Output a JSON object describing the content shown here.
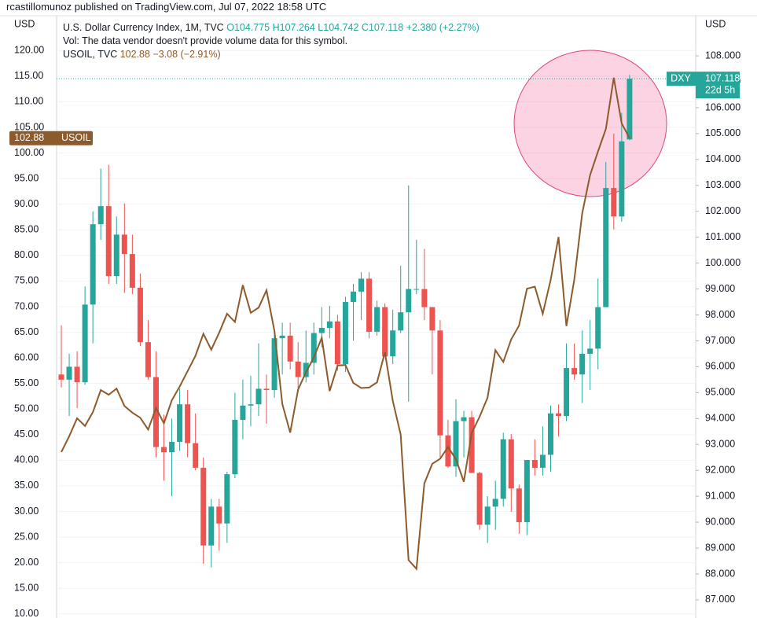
{
  "header": "rcastillomunoz published on TradingView.com, Jul 07, 2022 18:58 UTC",
  "chart_data": {
    "type": "candlestick",
    "left_axis_label": "USD",
    "right_axis_label": "USD",
    "legend": {
      "dxy_title": "U.S. Dollar Currency Index, 1M, TVC",
      "dxy_ohlc": [
        "O104.775",
        "H107.264",
        "L104.742",
        "C107.118"
      ],
      "dxy_change": "+2.380 (+2.27%)",
      "volume_note": "Vol: The data vendor doesn't provide volume data for this symbol.",
      "oil_title": "USOIL, TVC",
      "oil_last": "102.88",
      "oil_change": "−3.08 (−2.91%)"
    },
    "ylim": [
      9.2,
      126.8
    ],
    "yticks": [
      {
        "value": 10,
        "label": "10.00"
      },
      {
        "value": 15,
        "label": "15.00"
      },
      {
        "value": 20,
        "label": "20.00"
      },
      {
        "value": 25,
        "label": "25.00"
      },
      {
        "value": 30,
        "label": "30.00"
      },
      {
        "value": 35,
        "label": "35.00"
      },
      {
        "value": 40,
        "label": "40.00"
      },
      {
        "value": 45,
        "label": "45.00"
      },
      {
        "value": 50,
        "label": "50.00"
      },
      {
        "value": 55,
        "label": "55.00"
      },
      {
        "value": 60,
        "label": "60.00"
      },
      {
        "value": 65,
        "label": "65.00"
      },
      {
        "value": 70,
        "label": "70.00"
      },
      {
        "value": 75,
        "label": "75.00"
      },
      {
        "value": 80,
        "label": "80.00"
      },
      {
        "value": 85,
        "label": "85.00"
      },
      {
        "value": 90,
        "label": "90.00"
      },
      {
        "value": 95,
        "label": "95.00"
      },
      {
        "value": 100,
        "label": "100.00"
      },
      {
        "value": 105,
        "label": "105.00"
      },
      {
        "value": 110,
        "label": "110.00"
      },
      {
        "value": 115,
        "label": "115.00"
      },
      {
        "value": 120,
        "label": "120.00"
      }
    ],
    "y2lim": [
      86.3,
      109.55
    ],
    "y2ticks": [
      {
        "value": 87,
        "label": "87.000"
      },
      {
        "value": 88,
        "label": "88.000"
      },
      {
        "value": 89,
        "label": "89.000"
      },
      {
        "value": 90,
        "label": "90.000"
      },
      {
        "value": 91,
        "label": "91.000"
      },
      {
        "value": 92,
        "label": "92.000"
      },
      {
        "value": 93,
        "label": "93.000"
      },
      {
        "value": 94,
        "label": "94.000"
      },
      {
        "value": 95,
        "label": "95.000"
      },
      {
        "value": 96,
        "label": "96.000"
      },
      {
        "value": 97,
        "label": "97.000"
      },
      {
        "value": 98,
        "label": "98.000"
      },
      {
        "value": 99,
        "label": "99.000"
      },
      {
        "value": 100,
        "label": "100.000"
      },
      {
        "value": 101,
        "label": "101.000"
      },
      {
        "value": 102,
        "label": "102.000"
      },
      {
        "value": 103,
        "label": "103.000"
      },
      {
        "value": 104,
        "label": "104.000"
      },
      {
        "value": 105,
        "label": "105.000"
      },
      {
        "value": 106,
        "label": "106.000"
      },
      {
        "value": 107,
        "label": "107.000"
      },
      {
        "value": 108,
        "label": "108.000"
      }
    ],
    "grid": true,
    "series": [
      {
        "name": "DXY",
        "axis": "y2",
        "up_color": "#26a69a",
        "down_color": "#ef5350",
        "open": [
          95.7,
          95.5,
          96.0,
          95.4,
          98.4,
          101.5,
          102.2,
          99.5,
          101.1,
          100.35,
          99.05,
          96.95,
          95.6,
          92.9,
          92.7,
          93.1,
          94.55,
          93.05,
          92.1,
          89.1,
          90.6,
          89.95,
          91.85,
          93.95,
          94.5,
          94.55,
          95.15,
          95.1,
          97.1,
          97.2,
          96.2,
          95.6,
          96.15,
          97.3,
          97.5,
          97.75,
          96.1,
          98.5,
          98.9,
          99.4,
          97.35,
          98.3,
          96.4,
          97.4,
          98.1,
          99.0,
          99.0,
          98.3,
          97.4,
          93.35,
          92.15,
          93.9,
          94.05,
          91.9,
          89.9,
          90.6,
          90.9,
          93.2,
          91.3,
          90.0,
          92.4,
          92.1,
          92.6,
          94.2,
          94.1,
          95.95,
          95.7,
          96.5,
          96.7,
          98.3,
          102.9,
          101.8,
          104.775
        ],
        "high": [
          97.6,
          96.5,
          96.6,
          99.1,
          102.0,
          103.65,
          103.8,
          101.8,
          102.3,
          101.1,
          99.6,
          97.8,
          96.6,
          94.15,
          94.0,
          95.15,
          95.1,
          94.2,
          92.5,
          90.9,
          90.9,
          91.95,
          95.0,
          95.5,
          95.65,
          96.9,
          95.7,
          97.2,
          97.7,
          97.7,
          96.95,
          97.4,
          97.7,
          98.3,
          98.35,
          98.0,
          98.7,
          99.2,
          99.65,
          99.65,
          98.55,
          98.45,
          98.2,
          99.9,
          103.0,
          100.9,
          100.55,
          98.3,
          97.8,
          93.95,
          94.75,
          94.3,
          94.3,
          91.95,
          91.0,
          91.6,
          93.45,
          93.4,
          91.45,
          92.4,
          93.2,
          93.7,
          94.5,
          94.55,
          96.9,
          96.9,
          97.4,
          97.8,
          99.4,
          103.9,
          105.0,
          105.8,
          107.264
        ],
        "low": [
          95.2,
          94.1,
          94.4,
          95.3,
          96.9,
          100.9,
          99.2,
          99.2,
          98.85,
          98.8,
          96.8,
          95.5,
          92.5,
          91.6,
          91.0,
          92.75,
          92.5,
          92.0,
          88.4,
          88.25,
          88.9,
          89.2,
          91.7,
          93.2,
          93.7,
          94.1,
          93.8,
          94.8,
          95.7,
          95.9,
          95.0,
          95.4,
          95.7,
          96.75,
          97.1,
          95.85,
          95.8,
          97.0,
          97.8,
          97.1,
          97.2,
          96.4,
          96.1,
          97.3,
          94.65,
          98.8,
          97.8,
          95.7,
          92.5,
          92.1,
          91.75,
          92.5,
          91.9,
          89.7,
          89.2,
          89.7,
          90.6,
          90.4,
          89.55,
          89.5,
          91.8,
          91.8,
          91.95,
          93.3,
          93.9,
          95.5,
          94.6,
          95.1,
          95.9,
          98.3,
          101.3,
          101.6,
          104.742
        ],
        "close": [
          95.5,
          96.0,
          95.4,
          98.4,
          101.5,
          102.2,
          99.5,
          101.1,
          100.35,
          99.05,
          96.95,
          95.6,
          92.9,
          92.7,
          93.1,
          94.55,
          93.05,
          92.1,
          89.1,
          90.6,
          89.95,
          91.85,
          93.95,
          94.5,
          94.55,
          95.15,
          95.1,
          97.1,
          97.2,
          96.2,
          95.6,
          96.15,
          97.3,
          97.5,
          97.75,
          96.1,
          98.5,
          98.9,
          99.4,
          97.35,
          98.3,
          96.4,
          97.4,
          98.1,
          99.0,
          99.0,
          98.3,
          97.4,
          93.35,
          92.15,
          93.9,
          94.05,
          91.9,
          89.9,
          90.6,
          90.9,
          93.2,
          91.3,
          90.0,
          92.4,
          92.1,
          92.6,
          94.2,
          94.1,
          95.95,
          95.7,
          96.5,
          96.7,
          98.3,
          102.9,
          101.8,
          104.7,
          107.118
        ],
        "last_label": "107.118",
        "countdown": "22d 5h"
      },
      {
        "name": "USOIL",
        "type": "line",
        "color": "#8c5a2b",
        "values": [
          41.6,
          44.7,
          48.2,
          46.7,
          49.4,
          53.7,
          52.8,
          54.0,
          50.6,
          49.3,
          48.3,
          46.0,
          50.2,
          47.2,
          51.7,
          54.4,
          57.4,
          60.4,
          64.7,
          61.6,
          64.9,
          68.6,
          67.0,
          74.2,
          68.8,
          69.8,
          73.2,
          65.3,
          51.0,
          45.4,
          53.8,
          57.2,
          60.1,
          63.9,
          53.5,
          58.5,
          58.6,
          55.1,
          54.1,
          54.2,
          55.2,
          61.1,
          51.6,
          45.0,
          20.5,
          18.8,
          35.5,
          39.3,
          40.3,
          42.6,
          40.2,
          35.8,
          45.3,
          48.5,
          52.2,
          61.5,
          59.2,
          63.6,
          66.3,
          73.5,
          73.9,
          68.6,
          75.2,
          83.6,
          66.2,
          75.3,
          88.2,
          95.7,
          100.3,
          104.7,
          114.7,
          105.8,
          102.88
        ],
        "last_label": "102.88"
      }
    ]
  }
}
